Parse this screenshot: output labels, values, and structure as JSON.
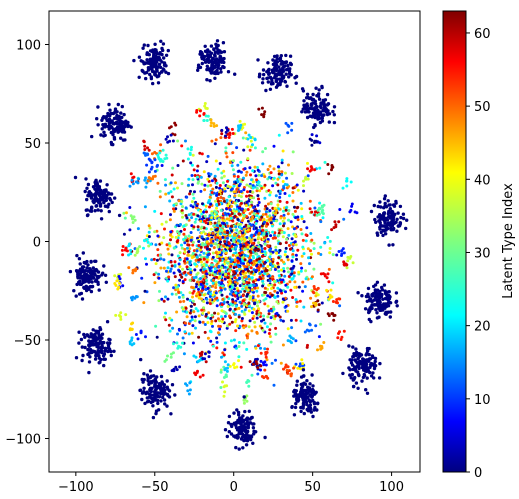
{
  "chart_data": {
    "type": "scatter",
    "title": "",
    "xlabel": "",
    "ylabel": "",
    "xlim": [
      -117,
      118
    ],
    "ylim": [
      -117,
      117
    ],
    "x_ticks": [
      -100,
      -50,
      0,
      50,
      100
    ],
    "x_tick_labels": [
      "−100",
      "−50",
      "0",
      "50",
      "100"
    ],
    "y_ticks": [
      100,
      50,
      0,
      -50,
      -100
    ],
    "y_tick_labels": [
      "100",
      "50",
      "0",
      "−50",
      "−100"
    ],
    "grid": false,
    "colormap": "jet",
    "colorbar": {
      "label": "Latent Type Index",
      "range": [
        0,
        63
      ],
      "ticks": [
        0,
        10,
        20,
        30,
        40,
        50,
        60
      ],
      "tick_labels": [
        "0",
        "10",
        "20",
        "30",
        "40",
        "50",
        "60"
      ]
    },
    "dark_clusters": [
      {
        "x": -50,
        "y": 91,
        "latent_index": 0
      },
      {
        "x": -13,
        "y": 91,
        "latent_index": 0
      },
      {
        "x": 27,
        "y": 85,
        "latent_index": 0
      },
      {
        "x": -75,
        "y": 60,
        "latent_index": 0
      },
      {
        "x": -85,
        "y": 23,
        "latent_index": 0
      },
      {
        "x": -93,
        "y": -17,
        "latent_index": 0
      },
      {
        "x": -87,
        "y": -53,
        "latent_index": 0
      },
      {
        "x": -50,
        "y": -76,
        "latent_index": 0
      },
      {
        "x": 5,
        "y": -95,
        "latent_index": 0
      },
      {
        "x": 53,
        "y": 68,
        "latent_index": 0
      },
      {
        "x": 98,
        "y": 12,
        "latent_index": 0
      },
      {
        "x": 92,
        "y": -30,
        "latent_index": 0
      },
      {
        "x": 82,
        "y": -63,
        "latent_index": 0
      },
      {
        "x": 46,
        "y": -80,
        "latent_index": 0
      }
    ],
    "central_cloud": {
      "center_x": 0,
      "center_y": -5,
      "spread_x": 42,
      "spread_y": 40,
      "latent_index_range": [
        0,
        63
      ]
    }
  }
}
